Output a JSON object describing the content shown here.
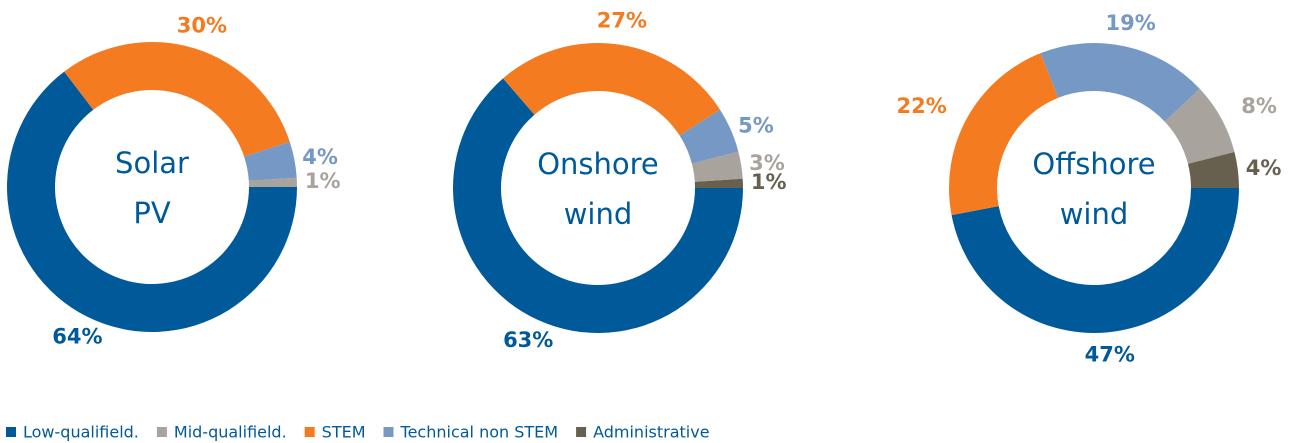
{
  "chart_data": [
    {
      "type": "donut",
      "title": [
        "Solar",
        "PV"
      ],
      "categories": [
        "Low-qualifield.",
        "Mid-qualifield.",
        "STEM",
        "Technical non STEM",
        "Administrative"
      ],
      "colors": [
        "#005a9a",
        "#a8a39d",
        "#f47b20",
        "#7598c4",
        "#67604f"
      ],
      "values": [
        64,
        1,
        30,
        4,
        null
      ],
      "value_labels": [
        "64%",
        "1%",
        "30%",
        "4%",
        null
      ]
    },
    {
      "type": "donut",
      "title": [
        "Onshore",
        "wind"
      ],
      "categories": [
        "Low-qualifield.",
        "Mid-qualifield.",
        "STEM",
        "Technical non STEM",
        "Administrative"
      ],
      "colors": [
        "#005a9a",
        "#a8a39d",
        "#f47b20",
        "#7598c4",
        "#67604f"
      ],
      "values": [
        63,
        3,
        27,
        5,
        1
      ],
      "value_labels": [
        "63%",
        "3%",
        "27%",
        "5%",
        "1%"
      ]
    },
    {
      "type": "donut",
      "title": [
        "Offshore",
        "wind"
      ],
      "categories": [
        "Low-qualifield.",
        "Mid-qualifield.",
        "STEM",
        "Technical non STEM",
        "Administrative"
      ],
      "colors": [
        "#005a9a",
        "#a8a39d",
        "#f47b20",
        "#7598c4",
        "#67604f"
      ],
      "values": [
        47,
        8,
        22,
        19,
        4
      ],
      "value_labels": [
        "47%",
        "8%",
        "22%",
        "19%",
        "4%"
      ]
    }
  ]
}
